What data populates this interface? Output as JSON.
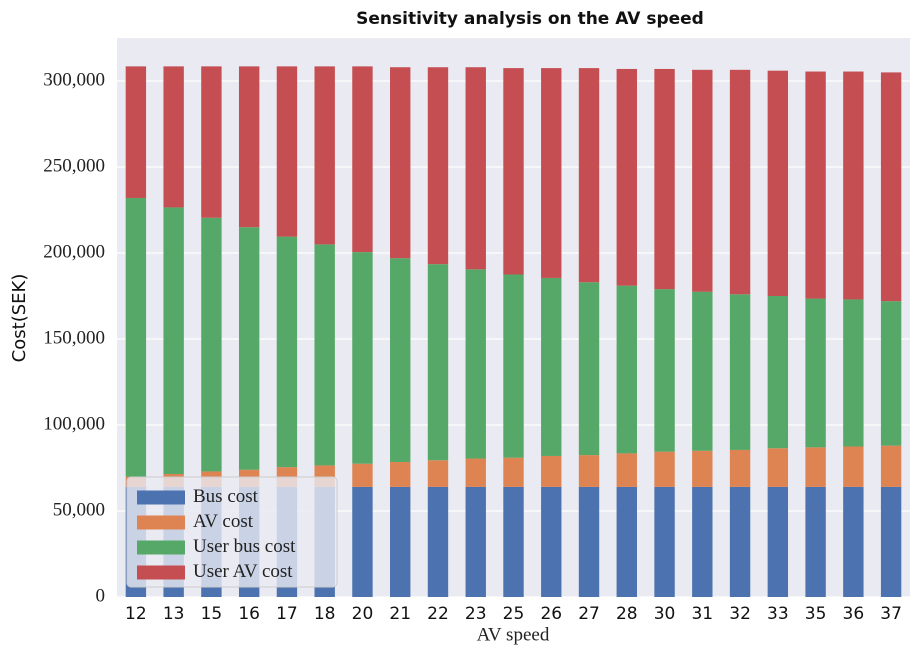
{
  "chart_data": {
    "type": "stacked-bar",
    "title": "Sensitivity analysis on  the AV speed",
    "x_label": "AV speed",
    "y_label": "Cost(SEK)",
    "categories": [
      "12",
      "13",
      "15",
      "16",
      "17",
      "18",
      "20",
      "21",
      "22",
      "23",
      "25",
      "26",
      "27",
      "28",
      "30",
      "31",
      "32",
      "33",
      "35",
      "36",
      "37"
    ],
    "series": [
      {
        "name": "Bus cost",
        "color": "#4c72b0",
        "values": [
          64000,
          64000,
          64000,
          64000,
          64000,
          64000,
          64000,
          64000,
          64000,
          64000,
          64000,
          64000,
          64000,
          64000,
          64000,
          64000,
          64000,
          64000,
          64000,
          64000,
          64000
        ]
      },
      {
        "name": "AV cost",
        "color": "#dd8452",
        "values": [
          6000,
          7500,
          9000,
          10000,
          11500,
          12500,
          13500,
          14500,
          15500,
          16500,
          17000,
          18000,
          18500,
          19500,
          20500,
          21000,
          21500,
          22500,
          23000,
          23500,
          24000
        ]
      },
      {
        "name": "User bus cost",
        "color": "#55a868",
        "values": [
          162000,
          155000,
          147500,
          141000,
          134000,
          128500,
          123000,
          118500,
          114000,
          110000,
          106500,
          103500,
          100500,
          97500,
          94500,
          92500,
          90500,
          88500,
          86500,
          85500,
          84000
        ]
      },
      {
        "name": "User AV cost",
        "color": "#c44e52",
        "values": [
          76500,
          82000,
          88000,
          93500,
          99000,
          103500,
          108000,
          111000,
          114500,
          117500,
          120000,
          122000,
          124500,
          126000,
          128000,
          129000,
          130500,
          131000,
          132000,
          132500,
          133000
        ]
      }
    ],
    "ylim": [
      0,
      325000
    ],
    "yticks": [
      0,
      {
        "value": 50000,
        "label": "50,000"
      },
      {
        "value": 100000,
        "label": "100,000"
      },
      {
        "value": 150000,
        "label": "150,000"
      },
      {
        "value": 200000,
        "label": "200,000"
      },
      {
        "value": 250000,
        "label": "250,000"
      },
      {
        "value": 300000,
        "label": "300,000"
      }
    ],
    "grid": true,
    "legend": "lower left"
  }
}
